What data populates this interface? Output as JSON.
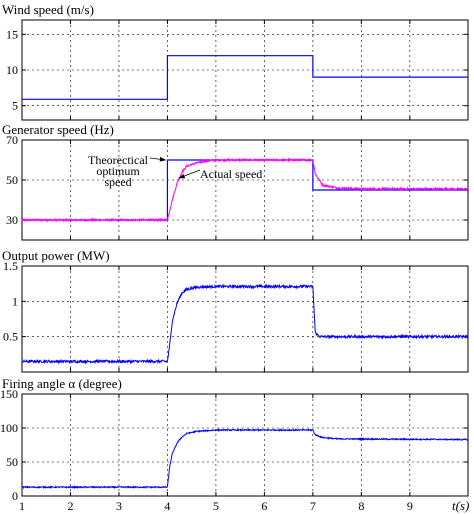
{
  "chart_data": [
    {
      "type": "line",
      "title": "Wind speed (m/s)",
      "xlim": [
        1,
        10.2
      ],
      "ylim": [
        3,
        17
      ],
      "yticks": [
        5,
        10,
        15
      ],
      "xticks": [
        1,
        2,
        3,
        4,
        5,
        6,
        7,
        8,
        9
      ],
      "xtick_labels_shown": false,
      "grid": "dashed",
      "series": [
        {
          "color": "#0000ff",
          "noise": 0,
          "x": [
            1,
            4,
            4,
            7,
            7,
            10.2
          ],
          "y": [
            5.9,
            5.9,
            12,
            12,
            9,
            9
          ]
        }
      ]
    },
    {
      "type": "line",
      "title": "Generator speed (Hz)",
      "xlim": [
        1,
        10.2
      ],
      "ylim": [
        20,
        70
      ],
      "yticks": [
        30,
        50,
        70
      ],
      "xticks": [
        1,
        2,
        3,
        4,
        5,
        6,
        7,
        8,
        9
      ],
      "xtick_labels_shown": false,
      "grid": "dashed",
      "series": [
        {
          "label_ref": "theoretical",
          "color": "#0000ff",
          "noise": 0,
          "x": [
            1,
            4,
            4,
            7,
            7,
            10.2
          ],
          "y": [
            30,
            30,
            60,
            60,
            45,
            45
          ]
        },
        {
          "label_ref": "actual",
          "color": "#ff00ff",
          "noise": 0.5,
          "x": [
            1,
            4,
            4.1,
            4.2,
            4.3,
            4.4,
            4.6,
            4.8,
            5,
            7,
            7.05,
            7.2,
            7.5,
            8,
            10.2
          ],
          "y": [
            30,
            30,
            40,
            48.5,
            54,
            57,
            58.5,
            59.5,
            60,
            60,
            53,
            47.5,
            46,
            45.6,
            45.5
          ]
        }
      ],
      "annotations": [
        {
          "id": "theoretical",
          "lines": [
            "Theorectical",
            "optimum",
            "speed"
          ],
          "point": [
            4.0,
            60
          ]
        },
        {
          "id": "actual",
          "lines": [
            "Actual speed"
          ],
          "point": [
            4.2,
            51
          ]
        }
      ]
    },
    {
      "type": "line",
      "title": "Output power (MW)",
      "xlim": [
        1,
        10.2
      ],
      "ylim": [
        0,
        1.5
      ],
      "yticks": [
        0.5,
        1,
        1.5
      ],
      "xticks": [
        1,
        2,
        3,
        4,
        5,
        6,
        7,
        8,
        9
      ],
      "xtick_labels_shown": false,
      "grid": "dashed",
      "series": [
        {
          "color": "#0000ff",
          "noise": 0.018,
          "x": [
            1,
            4,
            4.05,
            4.1,
            4.2,
            4.3,
            4.4,
            4.6,
            5,
            7,
            7.05,
            7.15,
            7.4,
            10.2
          ],
          "y": [
            0.15,
            0.15,
            0.4,
            0.72,
            0.98,
            1.12,
            1.17,
            1.2,
            1.21,
            1.21,
            0.55,
            0.5,
            0.5,
            0.5
          ]
        }
      ]
    },
    {
      "type": "line",
      "title": "Firing angle α (degree)",
      "xlim": [
        1,
        10.2
      ],
      "ylim": [
        0,
        150
      ],
      "yticks": [
        0,
        50,
        100,
        150
      ],
      "xticks": [
        1,
        2,
        3,
        4,
        5,
        6,
        7,
        8,
        9
      ],
      "xtick_labels": [
        "1",
        "2",
        "3",
        "4",
        "5",
        "6",
        "7",
        "8",
        "9"
      ],
      "xtick_labels_shown": true,
      "xlabel": "t(s)",
      "grid": "dashed",
      "series": [
        {
          "color": "#0000ff",
          "noise": 0.9,
          "x": [
            1,
            4,
            4.05,
            4.1,
            4.2,
            4.3,
            4.4,
            4.6,
            5,
            7,
            7.05,
            7.2,
            7.5,
            10.2
          ],
          "y": [
            13,
            13,
            45,
            62,
            78,
            87,
            92,
            95,
            97,
            97,
            90,
            86,
            84,
            83
          ]
        }
      ]
    }
  ]
}
